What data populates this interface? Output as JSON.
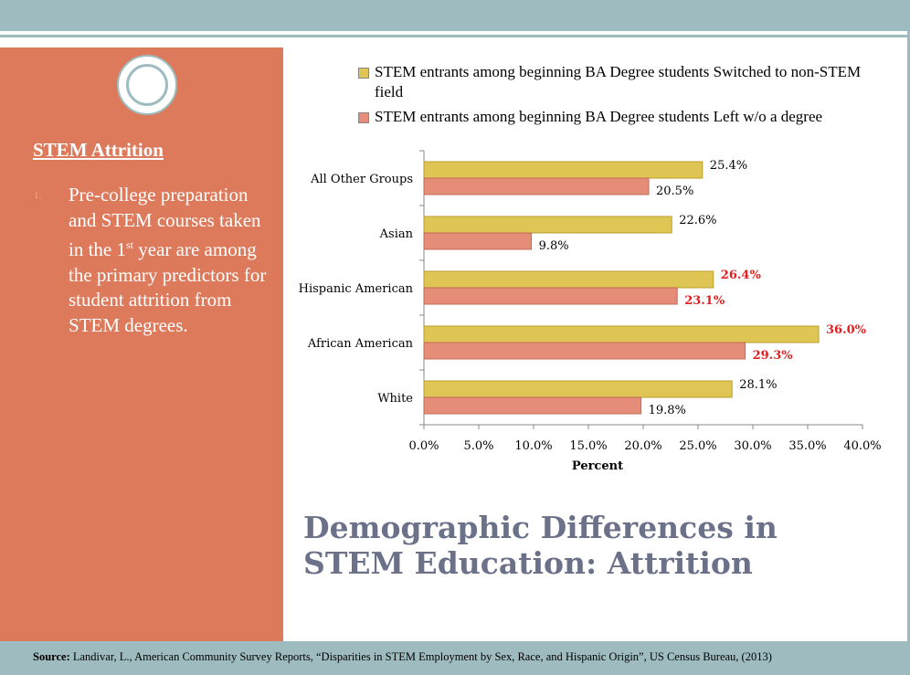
{
  "left_panel": {
    "heading": "STEM Attrition",
    "bullet_number": "1.",
    "bullet_text_before_sup": "Pre-college preparation and STEM courses taken in the 1",
    "bullet_sup": "st",
    "bullet_text_after_sup": " year are among the primary predictors for student attrition from STEM degrees."
  },
  "title": "Demographic Differences in STEM Education: Attrition",
  "source": {
    "label": "Source:",
    "text": " Landivar, L., American Community Survey Reports, “Disparities in STEM Employment by Sex, Race, and Hispanic Origin”, US Census Bureau, (2013)"
  },
  "colors": {
    "accent": "#9ebcc0",
    "panel": "#de7a5c",
    "series_switched": "#dfc553",
    "series_left": "#e58d78",
    "highlight_label": "#e02020"
  },
  "chart_data": {
    "type": "bar",
    "orientation": "horizontal",
    "categories": [
      "All Other Groups",
      "Asian",
      "Hispanic American",
      "African American",
      "White"
    ],
    "series": [
      {
        "name": "STEM entrants among beginning BA Degree students Switched to non-STEM field",
        "values": [
          25.4,
          22.6,
          26.4,
          36.0,
          28.1
        ],
        "labels": [
          "25.4%",
          "22.6%",
          "26.4%",
          "36.0%",
          "28.1%"
        ]
      },
      {
        "name": "STEM entrants among beginning BA Degree students Left w/o a degree",
        "values": [
          20.5,
          9.8,
          23.1,
          29.3,
          19.8
        ],
        "labels": [
          "20.5%",
          "9.8%",
          "23.1%",
          "29.3%",
          "19.8%"
        ]
      }
    ],
    "highlighted_categories": [
      "Hispanic American",
      "African American"
    ],
    "xlabel": "Percent",
    "xlim": [
      0,
      40
    ],
    "xticks": [
      "0.0%",
      "5.0%",
      "10.0%",
      "15.0%",
      "20.0%",
      "25.0%",
      "30.0%",
      "35.0%",
      "40.0%"
    ],
    "xtick_step": 5,
    "grid": false,
    "legend_position": "top"
  }
}
